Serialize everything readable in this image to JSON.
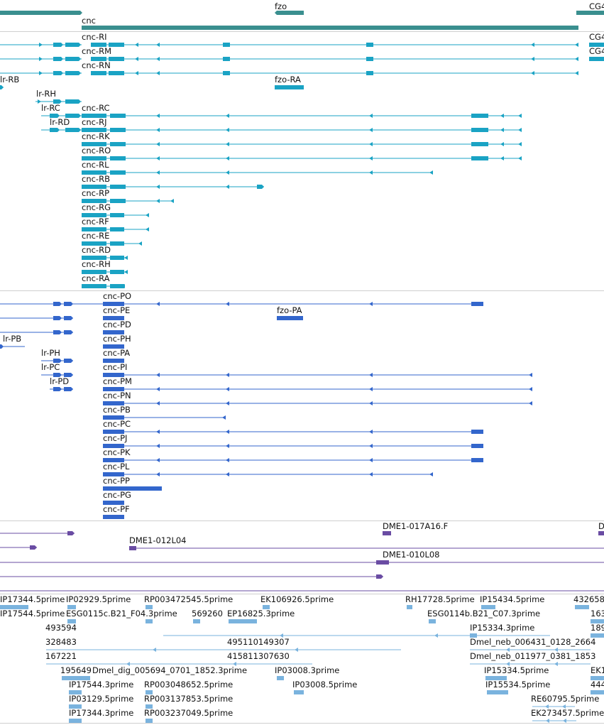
{
  "colors": {
    "gene": "#3a8f8f",
    "transcript": "#1aa3c4",
    "protein": "#3366cc",
    "clone": "#6a4ca3",
    "est": "#7ab3de"
  },
  "labels": {
    "gene_fzo": "fzo",
    "gene_cg4_top": "CG4",
    "gene_cnc": "cnc",
    "cnc_RI": "cnc-RI",
    "cg4_right_1": "CG4",
    "cnc_RM": "cnc-RM",
    "cg4_right_2": "CG4",
    "cnc_RN": "cnc-RN",
    "lr_RB": "lr-RB",
    "fzo_RA": "fzo-RA",
    "lr_RH": "lr-RH",
    "lr_RC": "lr-RC",
    "cnc_RC": "cnc-RC",
    "lr_RD": "lr-RD",
    "cnc_RJ": "cnc-RJ",
    "cnc_RK": "cnc-RK",
    "cnc_RO": "cnc-RO",
    "cnc_RL": "cnc-RL",
    "cnc_RB": "cnc-RB",
    "cnc_RP": "cnc-RP",
    "cnc_RG": "cnc-RG",
    "cnc_RF": "cnc-RF",
    "cnc_RE": "cnc-RE",
    "cnc_RD": "cnc-RD",
    "cnc_RH": "cnc-RH",
    "cnc_RA": "cnc-RA",
    "cnc_PO": "cnc-PO",
    "cnc_PE": "cnc-PE",
    "fzo_PA": "fzo-PA",
    "cnc_PD": "cnc-PD",
    "lr_PB": "lr-PB",
    "cnc_PH": "cnc-PH",
    "lr_PH": "lr-PH",
    "cnc_PA": "cnc-PA",
    "lr_PC": "lr-PC",
    "cnc_PI": "cnc-PI",
    "lr_PD": "lr-PD",
    "cnc_PM": "cnc-PM",
    "cnc_PN": "cnc-PN",
    "cnc_PB": "cnc-PB",
    "cnc_PC": "cnc-PC",
    "cnc_PJ": "cnc-PJ",
    "cnc_PK": "cnc-PK",
    "cnc_PL": "cnc-PL",
    "cnc_PP": "cnc-PP",
    "cnc_PG": "cnc-PG",
    "cnc_PF": "cnc-PF",
    "clone_017A16": "DME1-017A16.F",
    "clone_D": "D",
    "clone_012L04": "DME1-012L04",
    "clone_010L08": "DME1-010L08",
    "est_1": "IP17344.5prime",
    "est_2": "IP02929.5prime",
    "est_3": "RP003472545.5prime",
    "est_4": "EK106926.5prime",
    "est_5": "RH17728.5prime",
    "est_6": "IP15434.5prime",
    "est_7": "432658",
    "est_8": "IP17544.5prime",
    "est_9": "ESG0115c.B21_F04.3prime",
    "est_10": "569260",
    "est_11": "EP16825.3prime",
    "est_12": "ESG0114b.B21_C07.3prime",
    "est_13": "163",
    "est_14": "493594",
    "est_15": "IP15334.3prime",
    "est_16": "189",
    "est_17": "328483",
    "est_18": "495110149307",
    "est_19": "Dmel_neb_006431_0128_2664",
    "est_20": "167221",
    "est_21": "415811307630",
    "est_22": "Dmel_neb_011977_0381_1853",
    "est_23": "195649",
    "est_24": "Dmel_dig_005694_0701_1852.3prime",
    "est_25": "IP03008.3prime",
    "est_26": "IP15334.5prime",
    "est_27": "EK1",
    "est_28": "IP17544.3prime",
    "est_29": "RP003048652.5prime",
    "est_30": "IP03008.5prime",
    "est_31": "IP15534.5prime",
    "est_32": "444",
    "est_33": "IP03129.5prime",
    "est_34": "RP003137853.5prime",
    "est_35": "RE60795.5prime",
    "est_36": "IP17344.3prime",
    "est_37": "RP003237049.5prime",
    "est_38": "EK273457.5prime"
  }
}
